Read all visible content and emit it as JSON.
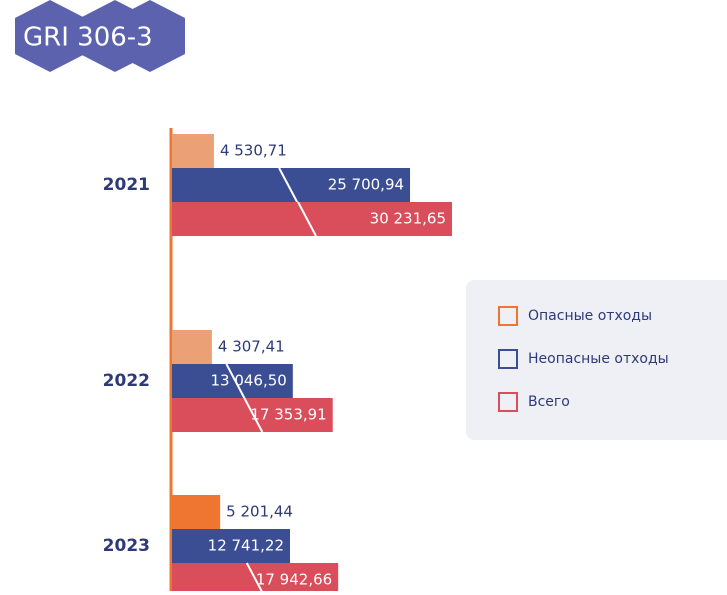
{
  "badge": "GRI 306-3",
  "chart_data": {
    "type": "hbar",
    "categories": [
      "2021",
      "2022",
      "2023"
    ],
    "series": [
      {
        "name": "Опасные отходы",
        "color": "#EE7630",
        "colors": [
          "#EBA075",
          "#EBA075",
          "#EE7630"
        ],
        "values": [
          4530.71,
          4307.41,
          5201.44
        ],
        "value_labels": [
          "4 530,71",
          "4 307,41",
          "5 201,44"
        ]
      },
      {
        "name": "Неопасные отходы",
        "color": "#3C4E93",
        "values": [
          25700.94,
          13046.5,
          12741.22
        ],
        "value_labels": [
          "25 700,94",
          "13 046,50",
          "12 741,22"
        ]
      },
      {
        "name": "Всего",
        "color": "#DA4D5A",
        "values": [
          30231.65,
          17353.91,
          17942.66
        ],
        "value_labels": [
          "30 231,65",
          "17 353,91",
          "17 942,66"
        ]
      }
    ],
    "legend": "right"
  }
}
